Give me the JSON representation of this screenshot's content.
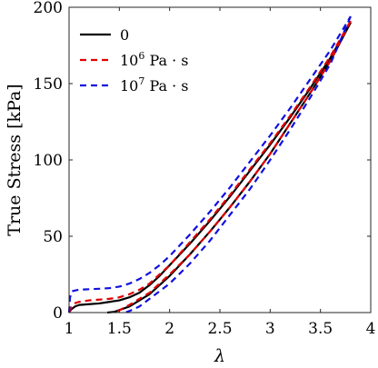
{
  "chart_data": {
    "type": "line",
    "xlabel": "λ",
    "ylabel": "True Stress [kPa]",
    "xlim": [
      1,
      4
    ],
    "ylim": [
      0,
      200
    ],
    "xticks": [
      "1",
      "1.5",
      "2",
      "2.5",
      "3",
      "3.5",
      "4"
    ],
    "yticks": [
      "0",
      "50",
      "100",
      "150",
      "200"
    ],
    "grid": false,
    "legend_position": "top-left",
    "series": [
      {
        "name": "0",
        "legend_base": "0",
        "legend_exp": "",
        "legend_unit": "",
        "color": "#000000",
        "dash": "solid",
        "loading": [
          [
            1.0,
            0
          ],
          [
            1.02,
            2
          ],
          [
            1.06,
            4
          ],
          [
            1.1,
            5
          ],
          [
            1.2,
            5.5
          ],
          [
            1.3,
            6
          ],
          [
            1.4,
            7
          ],
          [
            1.5,
            8
          ],
          [
            1.6,
            10
          ],
          [
            1.7,
            13
          ],
          [
            1.8,
            18
          ],
          [
            1.9,
            24
          ],
          [
            2.0,
            31
          ],
          [
            2.2,
            45
          ],
          [
            2.4,
            60
          ],
          [
            2.6,
            76
          ],
          [
            2.8,
            93
          ],
          [
            3.0,
            110
          ],
          [
            3.2,
            128
          ],
          [
            3.4,
            147
          ],
          [
            3.6,
            167
          ],
          [
            3.8,
            190
          ]
        ],
        "unloading": [
          [
            3.8,
            190
          ],
          [
            3.6,
            165
          ],
          [
            3.4,
            144
          ],
          [
            3.2,
            124
          ],
          [
            3.0,
            104
          ],
          [
            2.8,
            86
          ],
          [
            2.6,
            69
          ],
          [
            2.4,
            53
          ],
          [
            2.2,
            38
          ],
          [
            2.0,
            24
          ],
          [
            1.8,
            12
          ],
          [
            1.6,
            4
          ],
          [
            1.45,
            0.5
          ],
          [
            1.38,
            0
          ]
        ]
      },
      {
        "name": "10^6 Pa·s",
        "legend_base": "10",
        "legend_exp": "6",
        "legend_unit": "Pa · s",
        "color": "#e00000",
        "dash": "dashed",
        "loading": [
          [
            1.0,
            0
          ],
          [
            1.02,
            3
          ],
          [
            1.05,
            6
          ],
          [
            1.1,
            7
          ],
          [
            1.2,
            8
          ],
          [
            1.3,
            8.5
          ],
          [
            1.4,
            9
          ],
          [
            1.5,
            10
          ],
          [
            1.6,
            12
          ],
          [
            1.7,
            15
          ],
          [
            1.8,
            19
          ],
          [
            1.9,
            25
          ],
          [
            2.0,
            31
          ],
          [
            2.2,
            46
          ],
          [
            2.4,
            61
          ],
          [
            2.6,
            77
          ],
          [
            2.8,
            94
          ],
          [
            3.0,
            111
          ],
          [
            3.2,
            129
          ],
          [
            3.4,
            148
          ],
          [
            3.6,
            168
          ],
          [
            3.8,
            191
          ]
        ],
        "unloading": [
          [
            3.8,
            191
          ],
          [
            3.6,
            165
          ],
          [
            3.4,
            144
          ],
          [
            3.2,
            124
          ],
          [
            3.0,
            104
          ],
          [
            2.8,
            86
          ],
          [
            2.6,
            69
          ],
          [
            2.4,
            53
          ],
          [
            2.2,
            38
          ],
          [
            2.0,
            25
          ],
          [
            1.8,
            13
          ],
          [
            1.6,
            5
          ],
          [
            1.5,
            1.5
          ],
          [
            1.46,
            0
          ]
        ]
      },
      {
        "name": "10^7 Pa·s",
        "legend_base": "10",
        "legend_exp": "7",
        "legend_unit": "Pa · s",
        "color": "#1010e0",
        "dash": "dashed",
        "loading": [
          [
            1.0,
            0
          ],
          [
            1.01,
            10
          ],
          [
            1.03,
            14
          ],
          [
            1.1,
            15
          ],
          [
            1.2,
            15.3
          ],
          [
            1.3,
            15.6
          ],
          [
            1.4,
            16
          ],
          [
            1.5,
            17
          ],
          [
            1.6,
            19
          ],
          [
            1.7,
            22
          ],
          [
            1.8,
            26
          ],
          [
            1.9,
            31
          ],
          [
            2.0,
            37
          ],
          [
            2.2,
            51
          ],
          [
            2.4,
            66
          ],
          [
            2.6,
            82
          ],
          [
            2.8,
            99
          ],
          [
            3.0,
            116
          ],
          [
            3.2,
            134
          ],
          [
            3.4,
            153
          ],
          [
            3.6,
            172
          ],
          [
            3.8,
            194
          ]
        ],
        "unloading": [
          [
            3.8,
            194
          ],
          [
            3.6,
            163
          ],
          [
            3.4,
            141
          ],
          [
            3.2,
            120
          ],
          [
            3.0,
            100
          ],
          [
            2.8,
            81
          ],
          [
            2.6,
            64
          ],
          [
            2.4,
            47
          ],
          [
            2.2,
            32
          ],
          [
            2.0,
            19
          ],
          [
            1.8,
            9
          ],
          [
            1.7,
            4
          ],
          [
            1.6,
            1
          ],
          [
            1.56,
            0
          ]
        ]
      }
    ]
  }
}
